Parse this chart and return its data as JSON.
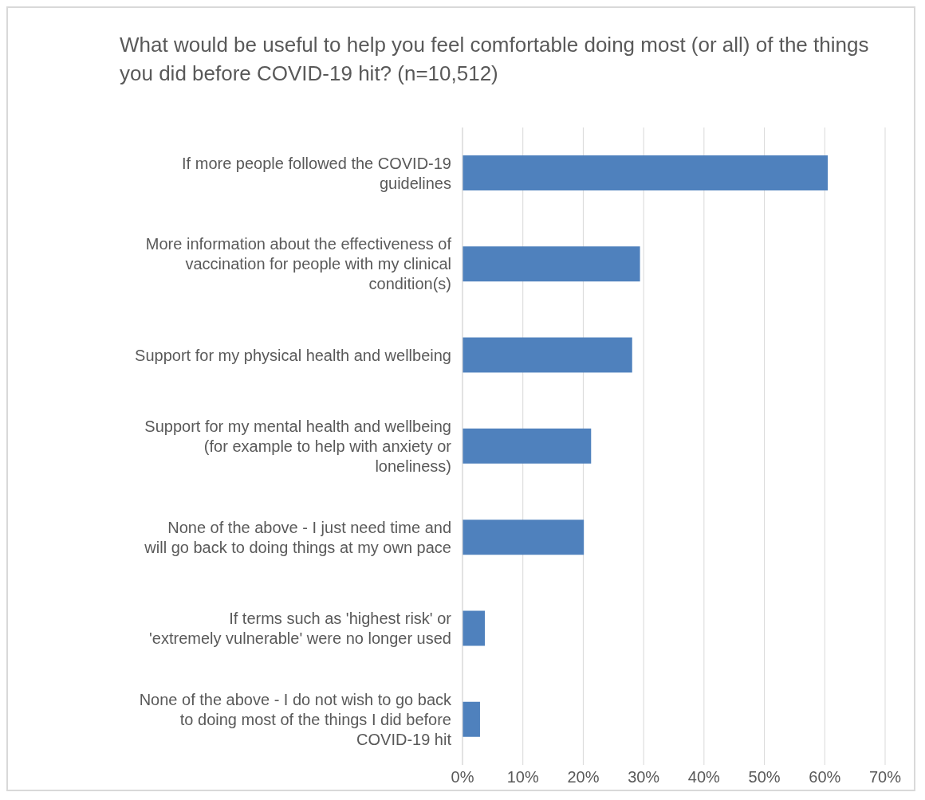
{
  "chart_data": {
    "type": "bar",
    "orientation": "horizontal",
    "title": "What would be useful to help you feel comfortable doing most (or all) of the things you did before COVID-19 hit? (n=10,512)",
    "categories": [
      "If more people followed the COVID-19 guidelines",
      "More information about the effectiveness of vaccination for people with my clinical condition(s)",
      "Support for my physical health and wellbeing",
      "Support for my mental health and wellbeing (for example to help with anxiety or loneliness)",
      "None of the above - I just need time and will go back to doing things at my own pace",
      "If terms such as 'highest risk' or 'extremely vulnerable' were no longer used",
      "None of the above - I do not wish to go back to doing most of the things I did before COVID-19 hit"
    ],
    "values": [
      60.5,
      29.4,
      28.1,
      21.3,
      20.1,
      3.7,
      2.9
    ],
    "color": "#4f81bd",
    "xlim": [
      0,
      70
    ],
    "xticks": [
      {
        "value": 0,
        "label": "0%"
      },
      {
        "value": 10,
        "label": "10%"
      },
      {
        "value": 20,
        "label": "20%"
      },
      {
        "value": 30,
        "label": "30%"
      },
      {
        "value": 40,
        "label": "40%"
      },
      {
        "value": 50,
        "label": "50%"
      },
      {
        "value": 60,
        "label": "60%"
      },
      {
        "value": 70,
        "label": "70%"
      }
    ],
    "grid": "x",
    "legend": false
  }
}
